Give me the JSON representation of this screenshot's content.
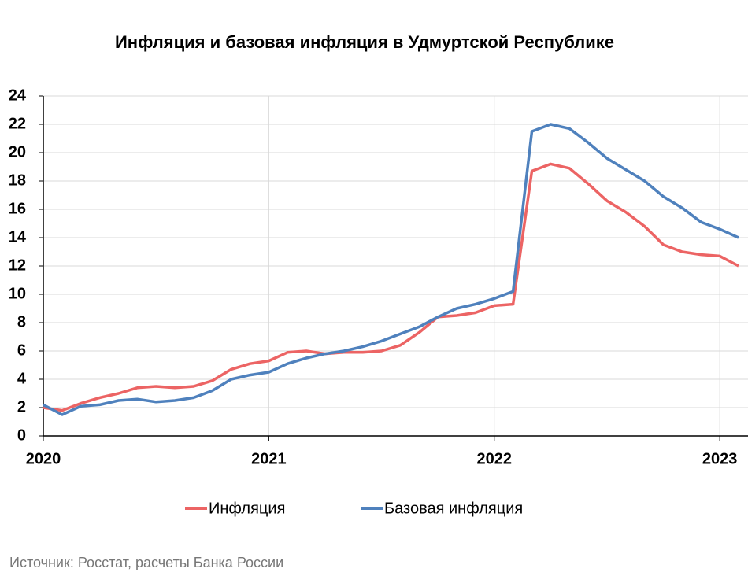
{
  "chart_data": {
    "type": "line",
    "title": "Инфляция и базовая инфляция в Удмуртской Республике",
    "categories": [
      "2020",
      null,
      null,
      null,
      null,
      null,
      null,
      null,
      null,
      null,
      null,
      null,
      "2021",
      null,
      null,
      null,
      null,
      null,
      null,
      null,
      null,
      null,
      null,
      null,
      "2022",
      null,
      null,
      null,
      null,
      null,
      null,
      null,
      null,
      null,
      null,
      null,
      "2023",
      null
    ],
    "series": [
      {
        "name": "Инфляция",
        "color": "#ec6464",
        "values": [
          2.0,
          1.8,
          2.3,
          2.7,
          3.0,
          3.4,
          3.5,
          3.4,
          3.5,
          3.9,
          4.7,
          5.1,
          5.3,
          5.9,
          6.0,
          5.8,
          5.9,
          5.9,
          6.0,
          6.4,
          7.3,
          8.4,
          8.5,
          8.7,
          9.2,
          9.3,
          18.7,
          19.2,
          18.9,
          17.8,
          16.6,
          15.8,
          14.8,
          13.5,
          13.0,
          12.8,
          12.7,
          12.0
        ]
      },
      {
        "name": "Базовая инфляция",
        "color": "#4f81bd",
        "values": [
          2.2,
          1.5,
          2.1,
          2.2,
          2.5,
          2.6,
          2.4,
          2.5,
          2.7,
          3.2,
          4.0,
          4.3,
          4.5,
          5.1,
          5.5,
          5.8,
          6.0,
          6.3,
          6.7,
          7.2,
          7.7,
          8.4,
          9.0,
          9.3,
          9.7,
          10.2,
          21.5,
          22.0,
          21.7,
          20.7,
          19.6,
          18.8,
          18.0,
          16.9,
          16.1,
          15.1,
          14.6,
          14.0
        ]
      }
    ],
    "ylim": [
      0,
      24
    ],
    "yticks": [
      0,
      2,
      4,
      6,
      8,
      10,
      12,
      14,
      16,
      18,
      20,
      22,
      24
    ],
    "grid": true,
    "legend": "bottom",
    "source": "Источник: Росстат, расчеты Банка России"
  }
}
